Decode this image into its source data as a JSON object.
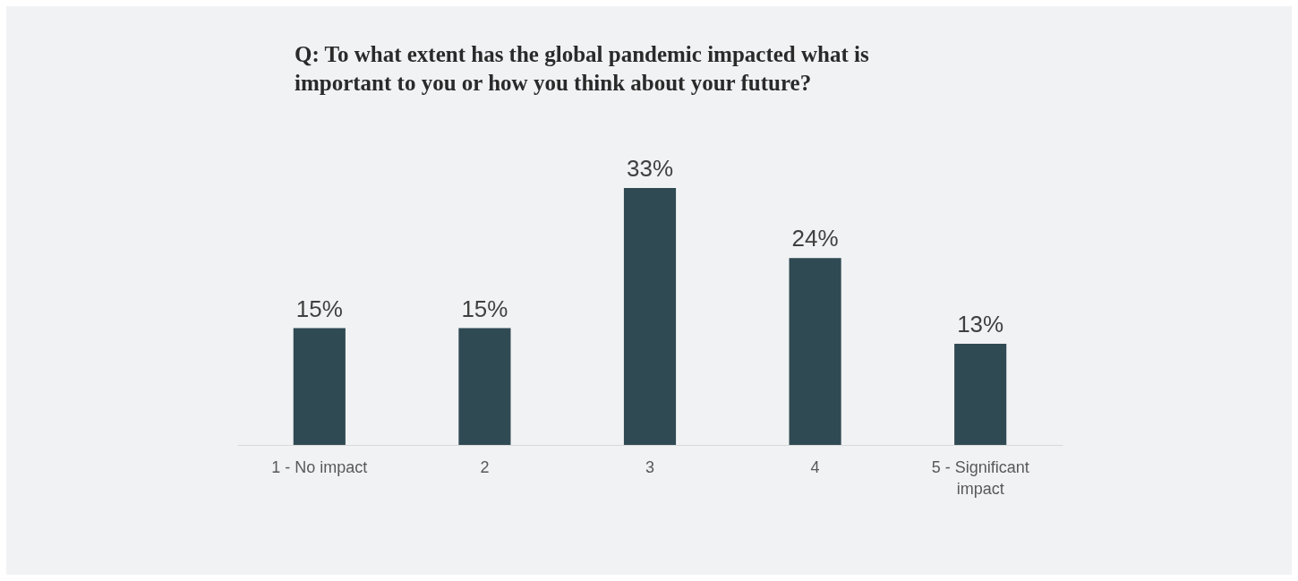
{
  "chart_data": {
    "type": "bar",
    "title": "Q: To what extent has the global pandemic impacted what is important to you or how you think about your future?",
    "categories": [
      "1 - No impact",
      "2",
      "3",
      "4",
      "5 - Significant impact"
    ],
    "values": [
      15,
      15,
      33,
      24,
      13
    ],
    "value_labels": [
      "15%",
      "15%",
      "33%",
      "24%",
      "13%"
    ],
    "color": "#304a54",
    "grid": false,
    "relative": false
  }
}
